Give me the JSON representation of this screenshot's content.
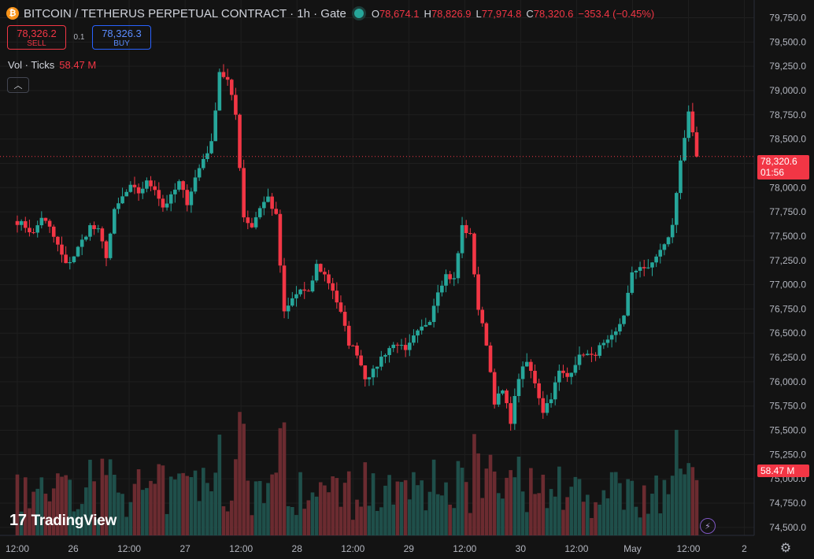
{
  "header": {
    "title": "BITCOIN / TETHERUS PERPETUAL CONTRACT · 1h · Gate",
    "ohlc": [
      {
        "key": "O",
        "value": "78,674.1"
      },
      {
        "key": "H",
        "value": "78,826.9"
      },
      {
        "key": "L",
        "value": "77,974.8"
      },
      {
        "key": "C",
        "value": "78,320.6"
      },
      {
        "key": "",
        "value": "−353.4 (−0.45%)"
      }
    ]
  },
  "trade": {
    "sell_price": "78,326.2",
    "sell_label": "SELL",
    "spread": "0.1",
    "buy_price": "78,326.3",
    "buy_label": "BUY"
  },
  "volume_legend": {
    "label": "Vol · Ticks",
    "value": "58.47 M"
  },
  "price_tag": {
    "price": "78,320.6",
    "countdown": "01:56"
  },
  "volume_tag": "58.47 M",
  "logo": "TradingView",
  "colors": {
    "up": "#26a69a",
    "down": "#f23645",
    "background": "#131313",
    "grid": "#1f1f1f"
  },
  "icons": {
    "symbol": "bitcoin-icon",
    "collapse": "chevron-up-icon",
    "lightning": "lightning-icon",
    "settings": "gear-icon"
  },
  "chart_data": {
    "type": "candlestick",
    "y_axis": {
      "range": [
        74450,
        79900
      ],
      "ticks": [
        "79,750.0",
        "79,500.0",
        "79,250.0",
        "79,000.0",
        "78,750.0",
        "78,500.0",
        "78,250.0",
        "78,000.0",
        "77,750.0",
        "77,500.0",
        "77,250.0",
        "77,000.0",
        "76,750.0",
        "76,500.0",
        "76,250.0",
        "76,000.0",
        "75,750.0",
        "75,500.0",
        "75,250.0",
        "75,000.0",
        "74,750.0",
        "74,500.0"
      ],
      "tick_values": [
        79750,
        79500,
        79250,
        79000,
        78750,
        78500,
        78250,
        78000,
        77750,
        77500,
        77250,
        77000,
        76750,
        76500,
        76250,
        76000,
        75750,
        75500,
        75250,
        75000,
        74750,
        74500
      ]
    },
    "x_axis": {
      "labels": [
        "12:00",
        "26",
        "12:00",
        "27",
        "12:00",
        "28",
        "12:00",
        "29",
        "12:00",
        "30",
        "12:00",
        "May",
        "12:00",
        "2"
      ],
      "label_bar_index": [
        0,
        12,
        24,
        36,
        48,
        60,
        72,
        84,
        96,
        108,
        120,
        132,
        144,
        156
      ]
    },
    "grid": true,
    "close_series": [
      77650,
      77600,
      77520,
      77700,
      77580,
      77400,
      77200,
      77300,
      77450,
      77600,
      77550,
      77300,
      77750,
      77900,
      78000,
      77950,
      78050,
      78000,
      77800,
      77900,
      78050,
      77850,
      78100,
      78300,
      78450,
      79200,
      79100,
      78750,
      77700,
      77600,
      77800,
      77900,
      77700,
      76700,
      76850,
      76950,
      76900,
      77200,
      77100,
      76950,
      76700,
      76400,
      76300,
      76050,
      76100,
      76250,
      76350,
      76400,
      76300,
      76450,
      76550,
      76650,
      76950,
      77100,
      77050,
      77600,
      77500,
      76750,
      76400,
      75800,
      75900,
      75600,
      76050,
      76200,
      76000,
      75700,
      75850,
      76100,
      76050,
      76200,
      76300,
      76250,
      76350,
      76400,
      76500,
      76700,
      77100,
      77200,
      77150,
      77300,
      77400,
      77600,
      78300,
      78750,
      78320
    ],
    "last_price": 78320.6,
    "volume_last": "58.47 M"
  }
}
